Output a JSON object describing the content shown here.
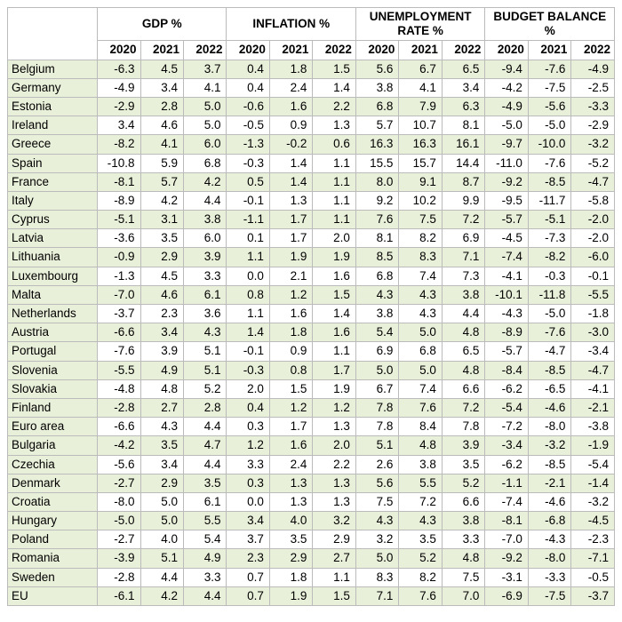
{
  "colors": {
    "band": "#e9f0da",
    "border": "#bbbbbb",
    "bg": "#ffffff"
  },
  "fontsize": 13.5,
  "metrics": [
    "GDP %",
    "INFLATION %",
    "UNEMPLOYMENT RATE %",
    "BUDGET BALANCE %"
  ],
  "years": [
    "2020",
    "2021",
    "2022"
  ],
  "rows": [
    {
      "c": "Belgium",
      "v": [
        "-6.3",
        "4.5",
        "3.7",
        "0.4",
        "1.8",
        "1.5",
        "5.6",
        "6.7",
        "6.5",
        "-9.4",
        "-7.6",
        "-4.9"
      ]
    },
    {
      "c": "Germany",
      "v": [
        "-4.9",
        "3.4",
        "4.1",
        "0.4",
        "2.4",
        "1.4",
        "3.8",
        "4.1",
        "3.4",
        "-4.2",
        "-7.5",
        "-2.5"
      ]
    },
    {
      "c": "Estonia",
      "v": [
        "-2.9",
        "2.8",
        "5.0",
        "-0.6",
        "1.6",
        "2.2",
        "6.8",
        "7.9",
        "6.3",
        "-4.9",
        "-5.6",
        "-3.3"
      ]
    },
    {
      "c": "Ireland",
      "v": [
        "3.4",
        "4.6",
        "5.0",
        "-0.5",
        "0.9",
        "1.3",
        "5.7",
        "10.7",
        "8.1",
        "-5.0",
        "-5.0",
        "-2.9"
      ]
    },
    {
      "c": "Greece",
      "v": [
        "-8.2",
        "4.1",
        "6.0",
        "-1.3",
        "-0.2",
        "0.6",
        "16.3",
        "16.3",
        "16.1",
        "-9.7",
        "-10.0",
        "-3.2"
      ]
    },
    {
      "c": "Spain",
      "v": [
        "-10.8",
        "5.9",
        "6.8",
        "-0.3",
        "1.4",
        "1.1",
        "15.5",
        "15.7",
        "14.4",
        "-11.0",
        "-7.6",
        "-5.2"
      ]
    },
    {
      "c": "France",
      "v": [
        "-8.1",
        "5.7",
        "4.2",
        "0.5",
        "1.4",
        "1.1",
        "8.0",
        "9.1",
        "8.7",
        "-9.2",
        "-8.5",
        "-4.7"
      ]
    },
    {
      "c": "Italy",
      "v": [
        "-8.9",
        "4.2",
        "4.4",
        "-0.1",
        "1.3",
        "1.1",
        "9.2",
        "10.2",
        "9.9",
        "-9.5",
        "-11.7",
        "-5.8"
      ]
    },
    {
      "c": "Cyprus",
      "v": [
        "-5.1",
        "3.1",
        "3.8",
        "-1.1",
        "1.7",
        "1.1",
        "7.6",
        "7.5",
        "7.2",
        "-5.7",
        "-5.1",
        "-2.0"
      ]
    },
    {
      "c": "Latvia",
      "v": [
        "-3.6",
        "3.5",
        "6.0",
        "0.1",
        "1.7",
        "2.0",
        "8.1",
        "8.2",
        "6.9",
        "-4.5",
        "-7.3",
        "-2.0"
      ]
    },
    {
      "c": "Lithuania",
      "v": [
        "-0.9",
        "2.9",
        "3.9",
        "1.1",
        "1.9",
        "1.9",
        "8.5",
        "8.3",
        "7.1",
        "-7.4",
        "-8.2",
        "-6.0"
      ]
    },
    {
      "c": "Luxembourg",
      "v": [
        "-1.3",
        "4.5",
        "3.3",
        "0.0",
        "2.1",
        "1.6",
        "6.8",
        "7.4",
        "7.3",
        "-4.1",
        "-0.3",
        "-0.1"
      ]
    },
    {
      "c": "Malta",
      "v": [
        "-7.0",
        "4.6",
        "6.1",
        "0.8",
        "1.2",
        "1.5",
        "4.3",
        "4.3",
        "3.8",
        "-10.1",
        "-11.8",
        "-5.5"
      ]
    },
    {
      "c": "Netherlands",
      "v": [
        "-3.7",
        "2.3",
        "3.6",
        "1.1",
        "1.6",
        "1.4",
        "3.8",
        "4.3",
        "4.4",
        "-4.3",
        "-5.0",
        "-1.8"
      ]
    },
    {
      "c": "Austria",
      "v": [
        "-6.6",
        "3.4",
        "4.3",
        "1.4",
        "1.8",
        "1.6",
        "5.4",
        "5.0",
        "4.8",
        "-8.9",
        "-7.6",
        "-3.0"
      ]
    },
    {
      "c": "Portugal",
      "v": [
        "-7.6",
        "3.9",
        "5.1",
        "-0.1",
        "0.9",
        "1.1",
        "6.9",
        "6.8",
        "6.5",
        "-5.7",
        "-4.7",
        "-3.4"
      ]
    },
    {
      "c": "Slovenia",
      "v": [
        "-5.5",
        "4.9",
        "5.1",
        "-0.3",
        "0.8",
        "1.7",
        "5.0",
        "5.0",
        "4.8",
        "-8.4",
        "-8.5",
        "-4.7"
      ]
    },
    {
      "c": "Slovakia",
      "v": [
        "-4.8",
        "4.8",
        "5.2",
        "2.0",
        "1.5",
        "1.9",
        "6.7",
        "7.4",
        "6.6",
        "-6.2",
        "-6.5",
        "-4.1"
      ]
    },
    {
      "c": "Finland",
      "v": [
        "-2.8",
        "2.7",
        "2.8",
        "0.4",
        "1.2",
        "1.2",
        "7.8",
        "7.6",
        "7.2",
        "-5.4",
        "-4.6",
        "-2.1"
      ]
    },
    {
      "c": "Euro area",
      "v": [
        "-6.6",
        "4.3",
        "4.4",
        "0.3",
        "1.7",
        "1.3",
        "7.8",
        "8.4",
        "7.8",
        "-7.2",
        "-8.0",
        "-3.8"
      ]
    },
    {
      "c": "Bulgaria",
      "v": [
        "-4.2",
        "3.5",
        "4.7",
        "1.2",
        "1.6",
        "2.0",
        "5.1",
        "4.8",
        "3.9",
        "-3.4",
        "-3.2",
        "-1.9"
      ]
    },
    {
      "c": "Czechia",
      "v": [
        "-5.6",
        "3.4",
        "4.4",
        "3.3",
        "2.4",
        "2.2",
        "2.6",
        "3.8",
        "3.5",
        "-6.2",
        "-8.5",
        "-5.4"
      ]
    },
    {
      "c": "Denmark",
      "v": [
        "-2.7",
        "2.9",
        "3.5",
        "0.3",
        "1.3",
        "1.3",
        "5.6",
        "5.5",
        "5.2",
        "-1.1",
        "-2.1",
        "-1.4"
      ]
    },
    {
      "c": "Croatia",
      "v": [
        "-8.0",
        "5.0",
        "6.1",
        "0.0",
        "1.3",
        "1.3",
        "7.5",
        "7.2",
        "6.6",
        "-7.4",
        "-4.6",
        "-3.2"
      ]
    },
    {
      "c": "Hungary",
      "v": [
        "-5.0",
        "5.0",
        "5.5",
        "3.4",
        "4.0",
        "3.2",
        "4.3",
        "4.3",
        "3.8",
        "-8.1",
        "-6.8",
        "-4.5"
      ]
    },
    {
      "c": "Poland",
      "v": [
        "-2.7",
        "4.0",
        "5.4",
        "3.7",
        "3.5",
        "2.9",
        "3.2",
        "3.5",
        "3.3",
        "-7.0",
        "-4.3",
        "-2.3"
      ]
    },
    {
      "c": "Romania",
      "v": [
        "-3.9",
        "5.1",
        "4.9",
        "2.3",
        "2.9",
        "2.7",
        "5.0",
        "5.2",
        "4.8",
        "-9.2",
        "-8.0",
        "-7.1"
      ]
    },
    {
      "c": "Sweden",
      "v": [
        "-2.8",
        "4.4",
        "3.3",
        "0.7",
        "1.8",
        "1.1",
        "8.3",
        "8.2",
        "7.5",
        "-3.1",
        "-3.3",
        "-0.5"
      ]
    },
    {
      "c": "EU",
      "v": [
        "-6.1",
        "4.2",
        "4.4",
        "0.7",
        "1.9",
        "1.5",
        "7.1",
        "7.6",
        "7.0",
        "-6.9",
        "-7.5",
        "-3.7"
      ]
    }
  ]
}
